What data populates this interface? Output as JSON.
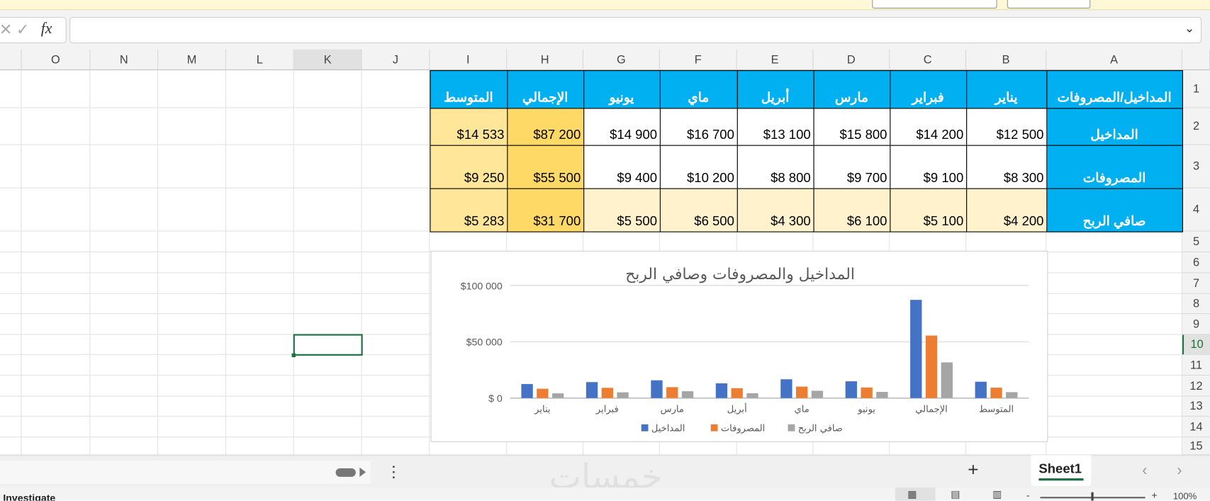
{
  "formula_bar": {
    "fx_label": "fx",
    "value": ""
  },
  "columns": [
    "A",
    "B",
    "C",
    "D",
    "E",
    "F",
    "G",
    "H",
    "I",
    "J",
    "K",
    "L",
    "M",
    "N",
    "O"
  ],
  "rows": [
    "1",
    "2",
    "3",
    "4",
    "5",
    "6",
    "7",
    "8",
    "9",
    "10",
    "11",
    "12",
    "13",
    "14",
    "15"
  ],
  "selected_cell": "K10",
  "table": {
    "header": [
      "المداخيل/المصروفات",
      "يناير",
      "فبراير",
      "مارس",
      "أبريل",
      "ماي",
      "يونيو",
      "الإجمالي",
      "المتوسط"
    ],
    "body": [
      [
        "المداخيل",
        "$12 500",
        "$14 200",
        "$15 800",
        "$13 100",
        "$16 700",
        "$14 900",
        "$87 200",
        "$14 533"
      ],
      [
        "المصروفات",
        "$8 300",
        "$9 100",
        "$9 700",
        "$8 800",
        "$10 200",
        "$9 400",
        "$55 500",
        "$9 250"
      ],
      [
        "صافي الربح",
        "$4 200",
        "$5 100",
        "$6 100",
        "$4 300",
        "$6 500",
        "$5 500",
        "$31 700",
        "$5 283"
      ]
    ]
  },
  "colors": {
    "header": "#00b0f0",
    "total": "#ffd966",
    "average": "#ffe699",
    "profit_row": "#fff2cc",
    "selection": "#1e7145"
  },
  "chart_data": {
    "type": "bar",
    "title": "المداخيل والمصروفات وصافي الربح",
    "categories": [
      "يناير",
      "فبراير",
      "مارس",
      "أبريل",
      "ماي",
      "يونيو",
      "الإجمالي",
      "المتوسط"
    ],
    "series": [
      {
        "name": "المداخيل",
        "color": "#4472c4",
        "values": [
          12500,
          14200,
          15800,
          13100,
          16700,
          14900,
          87200,
          14533
        ]
      },
      {
        "name": "المصروفات",
        "color": "#ed7d31",
        "values": [
          8300,
          9100,
          9700,
          8800,
          10200,
          9400,
          55500,
          9250
        ]
      },
      {
        "name": "صافي الربح",
        "color": "#a5a5a5",
        "values": [
          4200,
          5100,
          6100,
          4300,
          6500,
          5500,
          31700,
          5283
        ]
      }
    ],
    "yticks": [
      "$ 0",
      "$50 000",
      "$100 000"
    ],
    "ytick_values": [
      0,
      50000,
      100000
    ],
    "ylim": [
      0,
      100000
    ],
    "grid": true,
    "legend": "bottom"
  },
  "sheet_tabs": {
    "add_label": "+",
    "active": "Sheet1"
  },
  "status": {
    "left_text": "Investigate",
    "zoom": "100%"
  },
  "watermark": "خمسات"
}
